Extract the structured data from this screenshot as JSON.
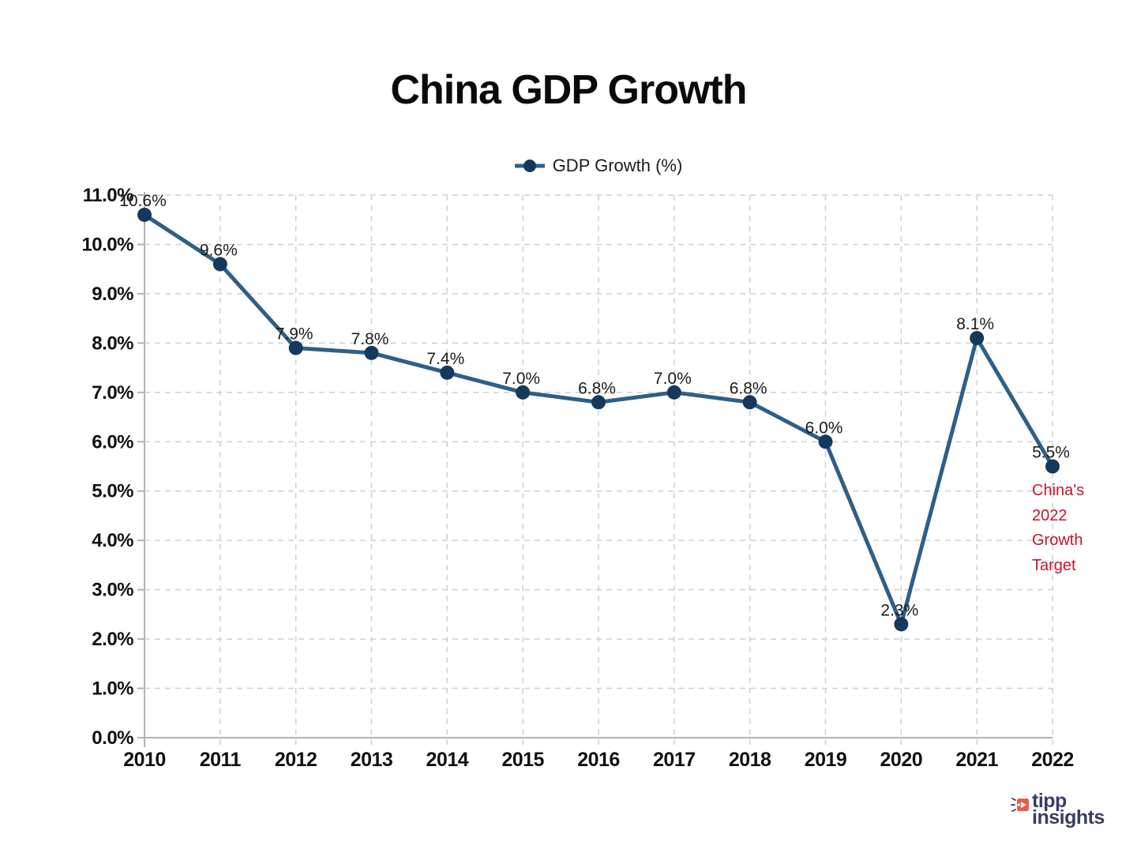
{
  "title": "China GDP Growth",
  "legend": {
    "label": "GDP Growth (%)"
  },
  "annotation": {
    "lines": [
      "China's",
      "2022",
      "Growth",
      "Target"
    ]
  },
  "logo": {
    "line1": "tipp",
    "line2": "insights"
  },
  "colors": {
    "line": "#2d5f88",
    "marker": "#15395c",
    "grid": "#d0d0d0",
    "axis": "#b3b3b3",
    "tick_label": "#111111",
    "point_label": "#1c1c1c",
    "annotation": "#c8122f",
    "logo_accent": "#ed5b4c",
    "logo_text": "#3a3d63"
  },
  "chart_data": {
    "type": "line",
    "title": "China GDP Growth",
    "x": [
      "2010",
      "2011",
      "2012",
      "2013",
      "2014",
      "2015",
      "2016",
      "2017",
      "2018",
      "2019",
      "2020",
      "2021",
      "2022"
    ],
    "series": [
      {
        "name": "GDP Growth (%)",
        "values": [
          10.6,
          9.6,
          7.9,
          7.8,
          7.4,
          7.0,
          6.8,
          7.0,
          6.8,
          6.0,
          2.3,
          8.1,
          5.5
        ]
      }
    ],
    "point_labels": [
      "10.6%",
      "9.6%",
      "7.9%",
      "7.8%",
      "7.4%",
      "7.0%",
      "6.8%",
      "7.0%",
      "6.8%",
      "6.0%",
      "2.3%",
      "8.1%",
      "5.5%"
    ],
    "xlabel": "",
    "ylabel": "",
    "ylim": [
      0,
      11
    ],
    "ytick_step": 1,
    "yticklabels": [
      "0.0%",
      "1.0%",
      "2.0%",
      "3.0%",
      "4.0%",
      "5.0%",
      "6.0%",
      "7.0%",
      "8.0%",
      "9.0%",
      "10.0%",
      "11.0%"
    ],
    "grid": true,
    "legend_position": "top",
    "annotation_text": "China's 2022 Growth Target",
    "annotation_target_x": "2022"
  }
}
